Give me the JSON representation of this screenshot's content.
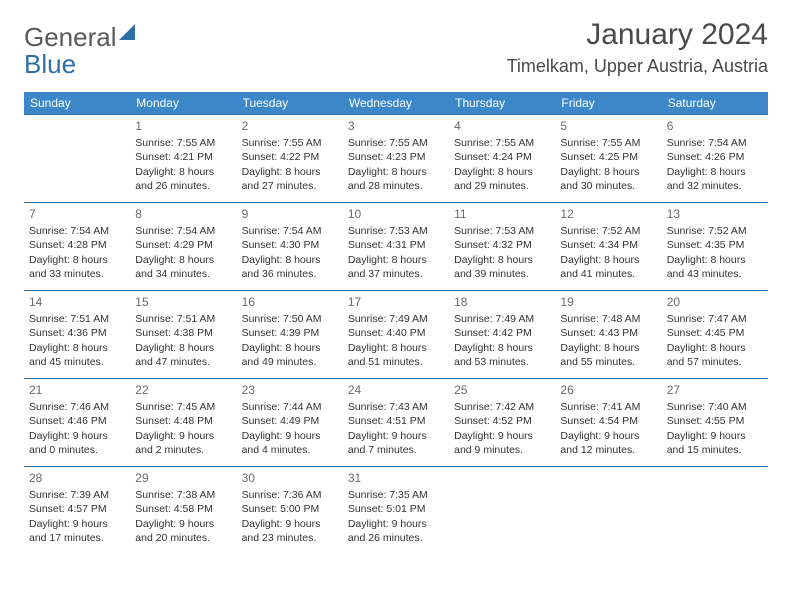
{
  "brand": {
    "part1": "General",
    "part2": "Blue"
  },
  "title": "January 2024",
  "location": "Timelkam, Upper Austria, Austria",
  "colors": {
    "header_bg": "#3b87c8",
    "header_text": "#ffffff",
    "row_border": "#2f6fa8",
    "daynum": "#6a6a6a",
    "body_text": "#333333",
    "brand_gray": "#5a5a5a",
    "brand_blue": "#2f6fa8"
  },
  "weekdays": [
    "Sunday",
    "Monday",
    "Tuesday",
    "Wednesday",
    "Thursday",
    "Friday",
    "Saturday"
  ],
  "weeks": [
    [
      null,
      {
        "day": "1",
        "sunrise": "Sunrise: 7:55 AM",
        "sunset": "Sunset: 4:21 PM",
        "daylight1": "Daylight: 8 hours",
        "daylight2": "and 26 minutes."
      },
      {
        "day": "2",
        "sunrise": "Sunrise: 7:55 AM",
        "sunset": "Sunset: 4:22 PM",
        "daylight1": "Daylight: 8 hours",
        "daylight2": "and 27 minutes."
      },
      {
        "day": "3",
        "sunrise": "Sunrise: 7:55 AM",
        "sunset": "Sunset: 4:23 PM",
        "daylight1": "Daylight: 8 hours",
        "daylight2": "and 28 minutes."
      },
      {
        "day": "4",
        "sunrise": "Sunrise: 7:55 AM",
        "sunset": "Sunset: 4:24 PM",
        "daylight1": "Daylight: 8 hours",
        "daylight2": "and 29 minutes."
      },
      {
        "day": "5",
        "sunrise": "Sunrise: 7:55 AM",
        "sunset": "Sunset: 4:25 PM",
        "daylight1": "Daylight: 8 hours",
        "daylight2": "and 30 minutes."
      },
      {
        "day": "6",
        "sunrise": "Sunrise: 7:54 AM",
        "sunset": "Sunset: 4:26 PM",
        "daylight1": "Daylight: 8 hours",
        "daylight2": "and 32 minutes."
      }
    ],
    [
      {
        "day": "7",
        "sunrise": "Sunrise: 7:54 AM",
        "sunset": "Sunset: 4:28 PM",
        "daylight1": "Daylight: 8 hours",
        "daylight2": "and 33 minutes."
      },
      {
        "day": "8",
        "sunrise": "Sunrise: 7:54 AM",
        "sunset": "Sunset: 4:29 PM",
        "daylight1": "Daylight: 8 hours",
        "daylight2": "and 34 minutes."
      },
      {
        "day": "9",
        "sunrise": "Sunrise: 7:54 AM",
        "sunset": "Sunset: 4:30 PM",
        "daylight1": "Daylight: 8 hours",
        "daylight2": "and 36 minutes."
      },
      {
        "day": "10",
        "sunrise": "Sunrise: 7:53 AM",
        "sunset": "Sunset: 4:31 PM",
        "daylight1": "Daylight: 8 hours",
        "daylight2": "and 37 minutes."
      },
      {
        "day": "11",
        "sunrise": "Sunrise: 7:53 AM",
        "sunset": "Sunset: 4:32 PM",
        "daylight1": "Daylight: 8 hours",
        "daylight2": "and 39 minutes."
      },
      {
        "day": "12",
        "sunrise": "Sunrise: 7:52 AM",
        "sunset": "Sunset: 4:34 PM",
        "daylight1": "Daylight: 8 hours",
        "daylight2": "and 41 minutes."
      },
      {
        "day": "13",
        "sunrise": "Sunrise: 7:52 AM",
        "sunset": "Sunset: 4:35 PM",
        "daylight1": "Daylight: 8 hours",
        "daylight2": "and 43 minutes."
      }
    ],
    [
      {
        "day": "14",
        "sunrise": "Sunrise: 7:51 AM",
        "sunset": "Sunset: 4:36 PM",
        "daylight1": "Daylight: 8 hours",
        "daylight2": "and 45 minutes."
      },
      {
        "day": "15",
        "sunrise": "Sunrise: 7:51 AM",
        "sunset": "Sunset: 4:38 PM",
        "daylight1": "Daylight: 8 hours",
        "daylight2": "and 47 minutes."
      },
      {
        "day": "16",
        "sunrise": "Sunrise: 7:50 AM",
        "sunset": "Sunset: 4:39 PM",
        "daylight1": "Daylight: 8 hours",
        "daylight2": "and 49 minutes."
      },
      {
        "day": "17",
        "sunrise": "Sunrise: 7:49 AM",
        "sunset": "Sunset: 4:40 PM",
        "daylight1": "Daylight: 8 hours",
        "daylight2": "and 51 minutes."
      },
      {
        "day": "18",
        "sunrise": "Sunrise: 7:49 AM",
        "sunset": "Sunset: 4:42 PM",
        "daylight1": "Daylight: 8 hours",
        "daylight2": "and 53 minutes."
      },
      {
        "day": "19",
        "sunrise": "Sunrise: 7:48 AM",
        "sunset": "Sunset: 4:43 PM",
        "daylight1": "Daylight: 8 hours",
        "daylight2": "and 55 minutes."
      },
      {
        "day": "20",
        "sunrise": "Sunrise: 7:47 AM",
        "sunset": "Sunset: 4:45 PM",
        "daylight1": "Daylight: 8 hours",
        "daylight2": "and 57 minutes."
      }
    ],
    [
      {
        "day": "21",
        "sunrise": "Sunrise: 7:46 AM",
        "sunset": "Sunset: 4:46 PM",
        "daylight1": "Daylight: 9 hours",
        "daylight2": "and 0 minutes."
      },
      {
        "day": "22",
        "sunrise": "Sunrise: 7:45 AM",
        "sunset": "Sunset: 4:48 PM",
        "daylight1": "Daylight: 9 hours",
        "daylight2": "and 2 minutes."
      },
      {
        "day": "23",
        "sunrise": "Sunrise: 7:44 AM",
        "sunset": "Sunset: 4:49 PM",
        "daylight1": "Daylight: 9 hours",
        "daylight2": "and 4 minutes."
      },
      {
        "day": "24",
        "sunrise": "Sunrise: 7:43 AM",
        "sunset": "Sunset: 4:51 PM",
        "daylight1": "Daylight: 9 hours",
        "daylight2": "and 7 minutes."
      },
      {
        "day": "25",
        "sunrise": "Sunrise: 7:42 AM",
        "sunset": "Sunset: 4:52 PM",
        "daylight1": "Daylight: 9 hours",
        "daylight2": "and 9 minutes."
      },
      {
        "day": "26",
        "sunrise": "Sunrise: 7:41 AM",
        "sunset": "Sunset: 4:54 PM",
        "daylight1": "Daylight: 9 hours",
        "daylight2": "and 12 minutes."
      },
      {
        "day": "27",
        "sunrise": "Sunrise: 7:40 AM",
        "sunset": "Sunset: 4:55 PM",
        "daylight1": "Daylight: 9 hours",
        "daylight2": "and 15 minutes."
      }
    ],
    [
      {
        "day": "28",
        "sunrise": "Sunrise: 7:39 AM",
        "sunset": "Sunset: 4:57 PM",
        "daylight1": "Daylight: 9 hours",
        "daylight2": "and 17 minutes."
      },
      {
        "day": "29",
        "sunrise": "Sunrise: 7:38 AM",
        "sunset": "Sunset: 4:58 PM",
        "daylight1": "Daylight: 9 hours",
        "daylight2": "and 20 minutes."
      },
      {
        "day": "30",
        "sunrise": "Sunrise: 7:36 AM",
        "sunset": "Sunset: 5:00 PM",
        "daylight1": "Daylight: 9 hours",
        "daylight2": "and 23 minutes."
      },
      {
        "day": "31",
        "sunrise": "Sunrise: 7:35 AM",
        "sunset": "Sunset: 5:01 PM",
        "daylight1": "Daylight: 9 hours",
        "daylight2": "and 26 minutes."
      },
      null,
      null,
      null
    ]
  ]
}
